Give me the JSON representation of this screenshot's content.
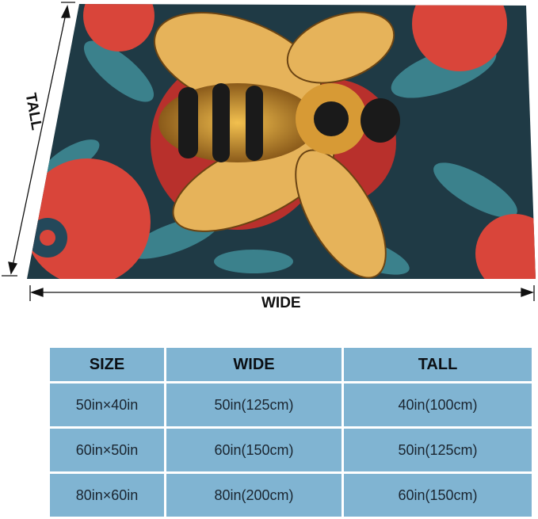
{
  "dimension_labels": {
    "tall": "TALL",
    "wide": "WIDE"
  },
  "product_image": {
    "subject": "bee-on-flowers-blanket",
    "colors": {
      "background": "#1f3a45",
      "flower": "#d9453a",
      "wing": "#e6b35a",
      "leaf": "#3f8a95"
    }
  },
  "size_table": {
    "headers": [
      "SIZE",
      "WIDE",
      "TALL"
    ],
    "rows": [
      [
        "50in×40in",
        "50in(125cm)",
        "40in(100cm)"
      ],
      [
        "60in×50in",
        "60in(150cm)",
        "50in(125cm)"
      ],
      [
        "80in×60in",
        "80in(200cm)",
        "60in(150cm)"
      ]
    ],
    "cell_color": "#80b4d2"
  }
}
